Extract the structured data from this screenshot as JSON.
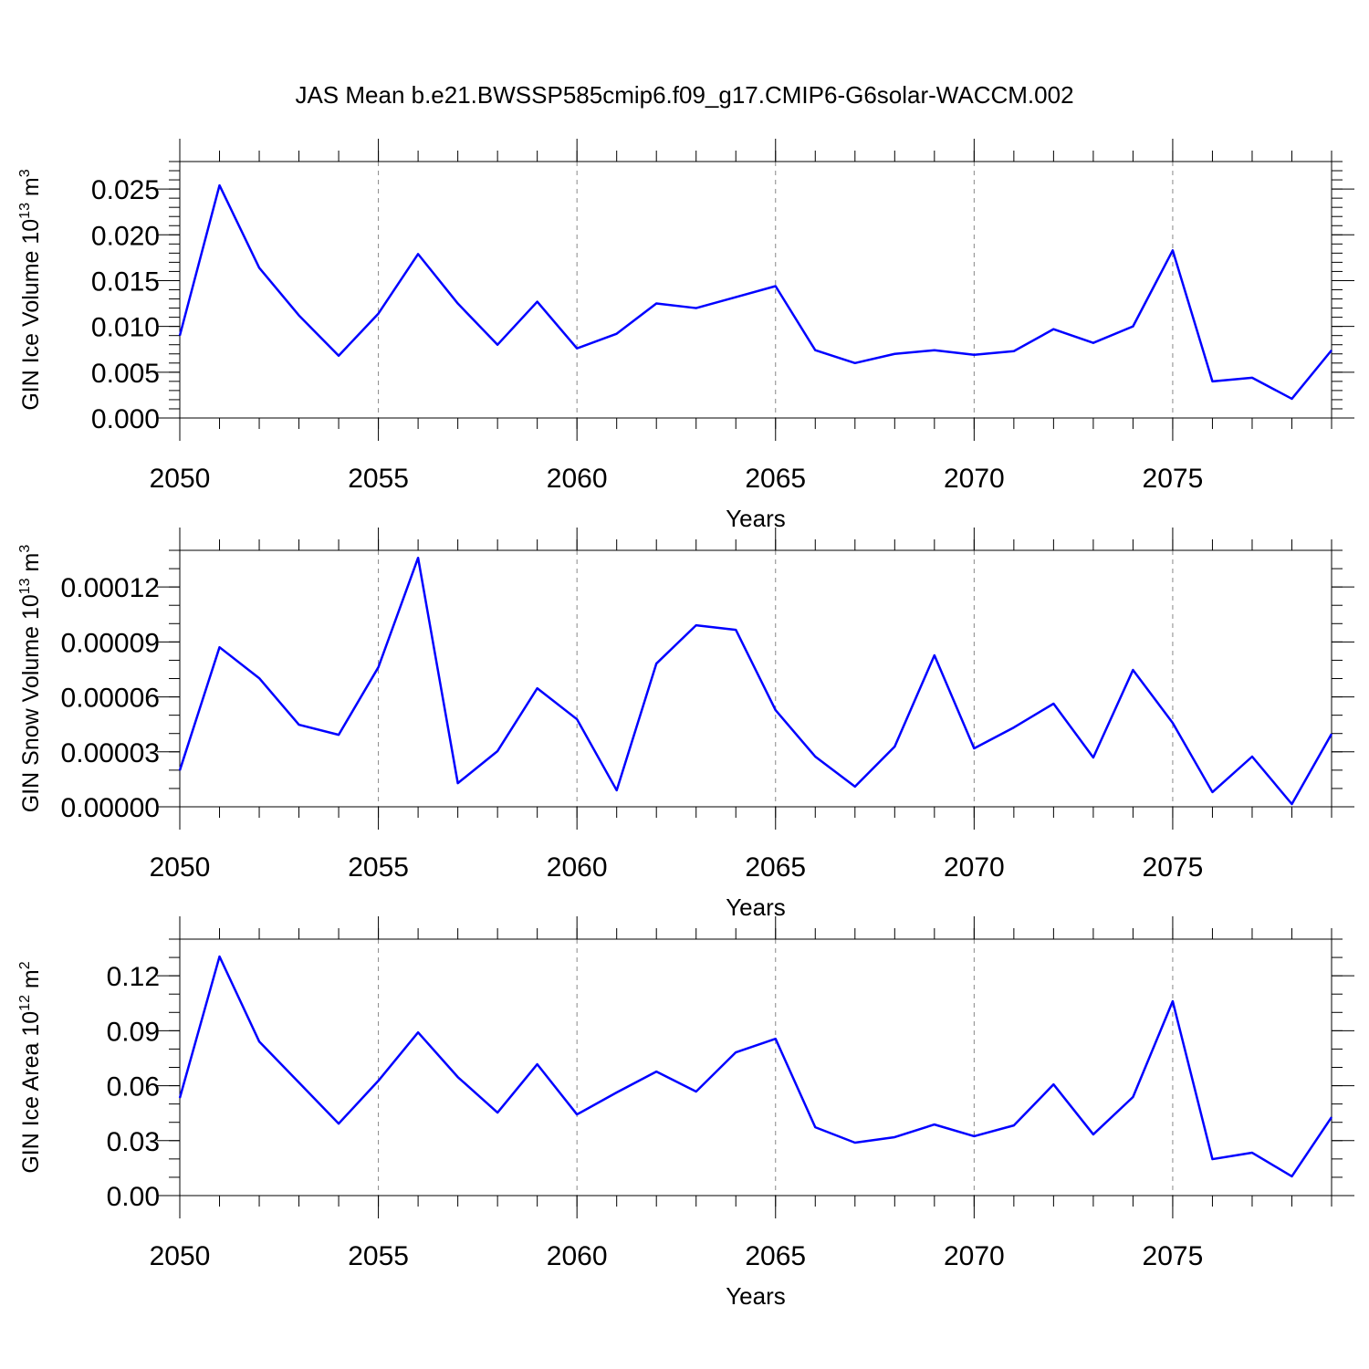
{
  "chart_data": [
    {
      "type": "line",
      "title": "JAS Mean b.e21.BWSSP585cmip6.f09_g17.CMIP6-G6solar-WACCM.002",
      "ylabel": {
        "text": "GIN Ice Volume 10",
        "power": "13",
        "unit": " m",
        "unit_power": "3"
      },
      "xlabel": "Years",
      "x": [
        2050,
        2051,
        2052,
        2053,
        2054,
        2055,
        2056,
        2057,
        2058,
        2059,
        2060,
        2061,
        2062,
        2063,
        2064,
        2065,
        2066,
        2067,
        2068,
        2069,
        2070,
        2071,
        2072,
        2073,
        2074,
        2075,
        2076,
        2077,
        2078,
        2079
      ],
      "series": [
        {
          "color": "#0000ff",
          "values": [
            0.009,
            0.0254,
            0.0164,
            0.0112,
            0.0068,
            0.0114,
            0.0179,
            0.0125,
            0.008,
            0.0127,
            0.0076,
            0.0092,
            0.0125,
            0.012,
            0.0132,
            0.0144,
            0.0074,
            0.006,
            0.007,
            0.0074,
            0.0069,
            0.0073,
            0.0097,
            0.0082,
            0.01,
            0.0183,
            0.004,
            0.0044,
            0.0021,
            0.0074
          ]
        }
      ],
      "xlim": [
        2050,
        2079
      ],
      "xticks": [
        2050,
        2055,
        2060,
        2065,
        2070,
        2075
      ],
      "ylim": [
        0,
        0.028
      ],
      "yticks": [
        {
          "value": 0,
          "label": "0.000"
        },
        0.005,
        {
          "value": 0.01,
          "label": "0.010"
        },
        0.015,
        {
          "value": 0.02,
          "label": "0.020"
        },
        0.025
      ],
      "grid": "x-dashed"
    },
    {
      "type": "line",
      "ylabel": {
        "text": "GIN Snow Volume 10",
        "power": "13",
        "unit": " m",
        "unit_power": "3"
      },
      "xlabel": "Years",
      "x": [
        2050,
        2051,
        2052,
        2053,
        2054,
        2055,
        2056,
        2057,
        2058,
        2059,
        2060,
        2061,
        2062,
        2063,
        2064,
        2065,
        2066,
        2067,
        2068,
        2069,
        2070,
        2071,
        2072,
        2073,
        2074,
        2075,
        2076,
        2077,
        2078,
        2079
      ],
      "series": [
        {
          "color": "#0000ff",
          "values": [
            1.99e-05,
            8.71e-05,
            7.02e-05,
            4.48e-05,
            3.93e-05,
            7.62e-05,
            0.0001359,
            1.29e-05,
            3.04e-05,
            6.47e-05,
            4.78e-05,
            9e-06,
            7.82e-05,
            9.91e-05,
            9.66e-05,
            5.28e-05,
            2.74e-05,
            1.1e-05,
            3.29e-05,
            8.27e-05,
            3.19e-05,
            4.33e-05,
            5.63e-05,
            2.69e-05,
            7.47e-05,
            4.58e-05,
            8e-06,
            2.74e-05,
            1.5e-06,
            3.98e-05
          ]
        }
      ],
      "xlim": [
        2050,
        2079
      ],
      "xticks": [
        2050,
        2055,
        2060,
        2065,
        2070,
        2075
      ],
      "ylim": [
        0,
        0.00014
      ],
      "yticks": [
        {
          "value": 0,
          "label": "0.00000"
        },
        3e-05,
        6e-05,
        9e-05,
        0.00012
      ],
      "grid": "x-dashed"
    },
    {
      "type": "line",
      "ylabel": {
        "text": "GIN Ice Area 10",
        "power": "12",
        "unit": " m",
        "unit_power": "2"
      },
      "xlabel": "Years",
      "x": [
        2050,
        2051,
        2052,
        2053,
        2054,
        2055,
        2056,
        2057,
        2058,
        2059,
        2060,
        2061,
        2062,
        2063,
        2064,
        2065,
        2066,
        2067,
        2068,
        2069,
        2070,
        2071,
        2072,
        2073,
        2074,
        2075,
        2076,
        2077,
        2078,
        2079
      ],
      "series": [
        {
          "color": "#0000ff",
          "values": [
            0.0533,
            0.1305,
            0.0841,
            0.0617,
            0.0393,
            0.0627,
            0.0891,
            0.0647,
            0.0453,
            0.0717,
            0.0443,
            0.0563,
            0.0677,
            0.0568,
            0.0782,
            0.0856,
            0.0373,
            0.0289,
            0.0319,
            0.0388,
            0.0324,
            0.0383,
            0.0607,
            0.0334,
            0.0538,
            0.1061,
            0.0199,
            0.0234,
            0.0105,
            0.0428
          ]
        }
      ],
      "xlim": [
        2050,
        2079
      ],
      "xticks": [
        2050,
        2055,
        2060,
        2065,
        2070,
        2075
      ],
      "ylim": [
        0,
        0.14
      ],
      "yticks": [
        {
          "value": 0,
          "label": "0.00"
        },
        0.03,
        0.06,
        0.09,
        0.12
      ],
      "grid": "x-dashed"
    }
  ]
}
